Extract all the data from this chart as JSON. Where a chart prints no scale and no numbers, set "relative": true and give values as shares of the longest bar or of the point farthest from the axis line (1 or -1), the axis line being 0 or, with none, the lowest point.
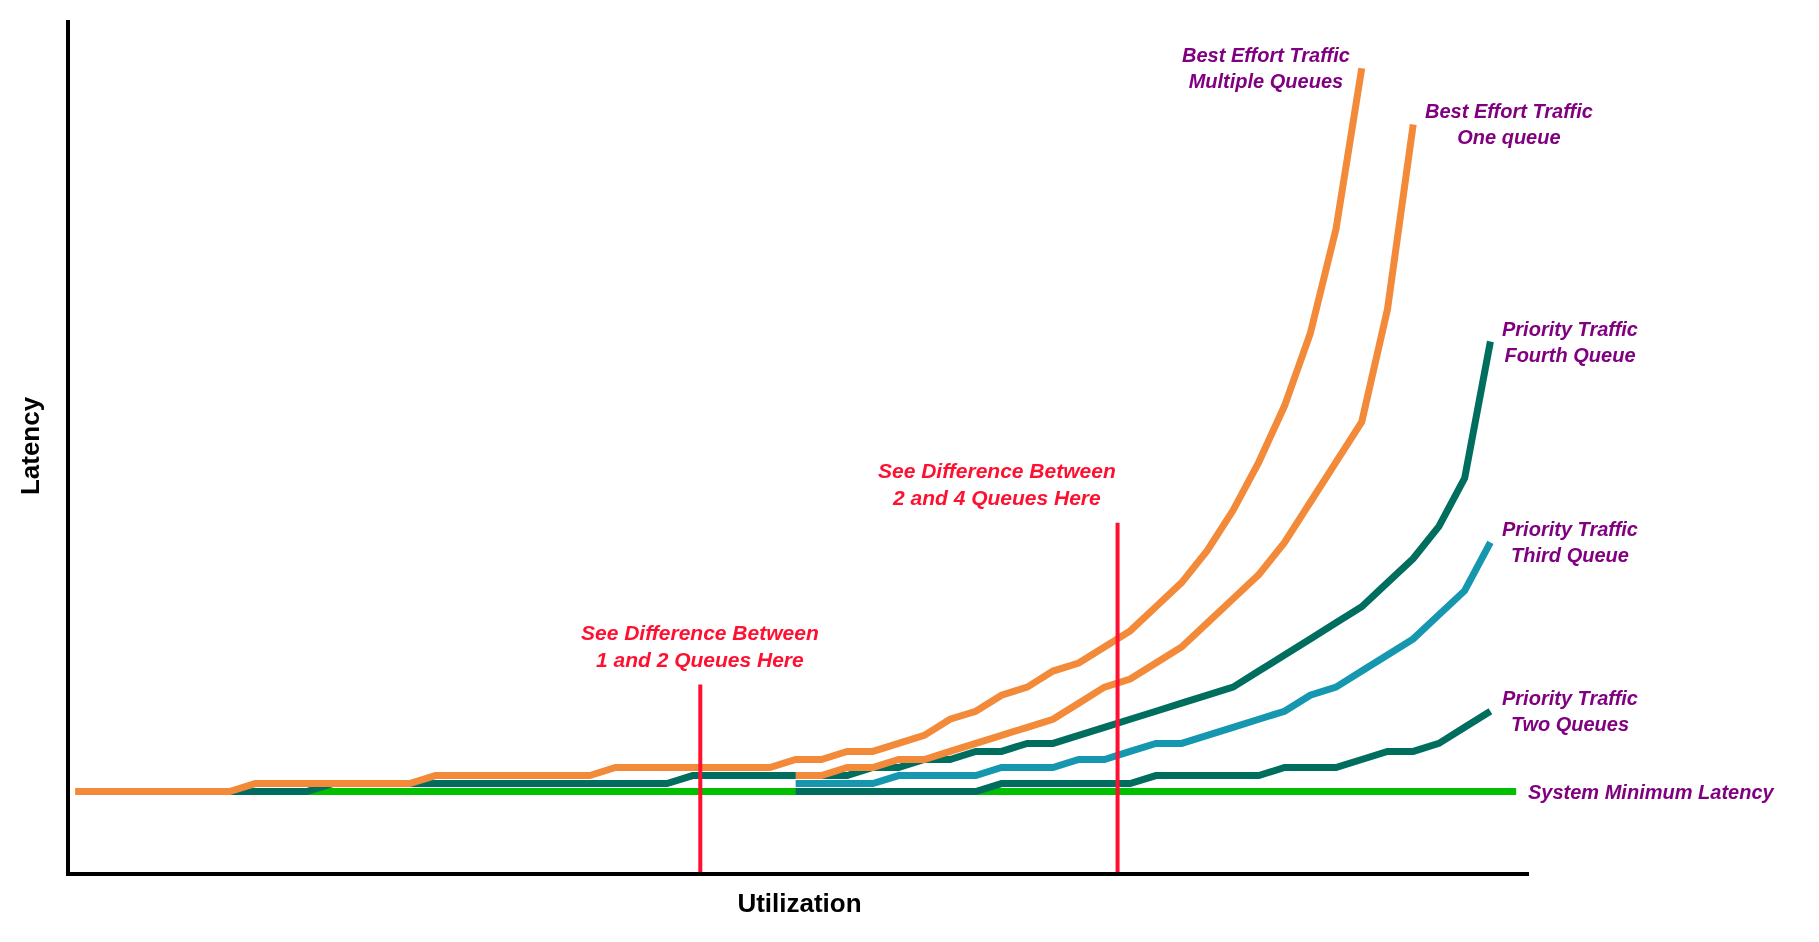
{
  "chart_data": {
    "type": "line",
    "relative": true,
    "xlabel": "Utilization",
    "ylabel": "Latency",
    "legend": false,
    "marker": "none",
    "line_style": "solid",
    "categories": [
      null,
      null,
      null,
      null,
      null,
      null,
      null,
      null,
      null,
      null,
      null,
      null,
      null,
      null,
      null,
      null,
      null,
      null,
      null,
      null,
      null,
      null,
      null,
      null,
      null,
      null,
      null,
      null,
      null,
      null,
      null,
      null,
      null,
      null,
      null,
      null,
      null,
      null,
      null,
      null,
      null,
      null,
      null,
      null,
      null,
      null,
      null,
      null,
      null,
      null,
      null,
      null,
      null,
      null,
      null,
      null,
      null
    ],
    "series": [
      {
        "name": "System Minimum Latency",
        "color": "#00c000",
        "values": [
          null,
          null,
          null,
          null,
          null,
          null,
          null,
          0.1,
          0.1,
          0.1,
          0.1,
          0.1,
          0.1,
          0.1,
          0.1,
          0.1,
          0.1,
          0.1,
          0.1,
          0.1,
          0.1,
          0.1,
          0.1,
          0.1,
          0.1,
          0.1,
          0.1,
          0.1,
          0.1,
          0.1,
          0.1,
          0.1,
          0.1,
          0.1,
          0.1,
          0.1,
          0.1,
          0.1,
          0.1,
          0.1,
          0.1,
          0.1,
          0.1,
          0.1,
          0.1,
          0.1,
          0.1,
          0.1,
          0.1,
          0.1,
          0.1,
          0.1,
          0.1,
          0.1,
          0.1,
          0.1,
          0.1
        ]
      },
      {
        "name": "Priority Traffic\nTwo Queues",
        "color": "#006e5f",
        "values": [
          null,
          null,
          null,
          null,
          null,
          null,
          null,
          null,
          null,
          null,
          null,
          null,
          null,
          null,
          null,
          null,
          null,
          null,
          null,
          null,
          null,
          null,
          null,
          null,
          null,
          null,
          null,
          null,
          0.1,
          0.1,
          0.1,
          0.1,
          0.1,
          0.1,
          0.1,
          0.1,
          0.11,
          0.11,
          0.11,
          0.11,
          0.11,
          0.11,
          0.12,
          0.12,
          0.12,
          0.12,
          0.12,
          0.13,
          0.13,
          0.13,
          0.14,
          0.15,
          0.15,
          0.16,
          0.18,
          0.2,
          null
        ]
      },
      {
        "name": "Priority Traffic\nThird Queue",
        "color": "#1597b0",
        "values": [
          null,
          null,
          null,
          null,
          null,
          null,
          null,
          null,
          null,
          null,
          null,
          null,
          null,
          null,
          null,
          null,
          null,
          null,
          null,
          null,
          null,
          null,
          null,
          null,
          null,
          null,
          null,
          null,
          0.11,
          0.11,
          0.11,
          0.11,
          0.12,
          0.12,
          0.12,
          0.12,
          0.13,
          0.13,
          0.13,
          0.14,
          0.14,
          0.15,
          0.16,
          0.16,
          0.17,
          0.18,
          0.19,
          0.2,
          0.22,
          0.23,
          0.25,
          0.27,
          0.29,
          0.32,
          0.35,
          0.41,
          null
        ]
      },
      {
        "name": "Priority Traffic\nFourth Queue",
        "color": "#006e5f",
        "values": [
          null,
          null,
          null,
          null,
          null,
          null,
          0.1,
          0.1,
          0.1,
          0.1,
          0.11,
          0.11,
          0.11,
          0.11,
          0.11,
          0.11,
          0.11,
          0.11,
          0.11,
          0.11,
          0.11,
          0.11,
          0.11,
          0.11,
          0.12,
          0.12,
          0.12,
          0.12,
          0.12,
          0.12,
          0.12,
          0.13,
          0.13,
          0.14,
          0.14,
          0.15,
          0.15,
          0.16,
          0.16,
          0.17,
          0.18,
          0.19,
          0.2,
          0.21,
          0.22,
          0.23,
          0.25,
          0.27,
          0.29,
          0.31,
          0.33,
          0.36,
          0.39,
          0.43,
          0.49,
          0.66,
          null
        ]
      },
      {
        "name": "Best Effort Traffic\nOne queue",
        "color": "#f28a3a",
        "values": [
          null,
          null,
          null,
          null,
          null,
          null,
          null,
          null,
          null,
          null,
          null,
          null,
          null,
          null,
          null,
          null,
          null,
          null,
          null,
          null,
          null,
          null,
          null,
          null,
          null,
          null,
          null,
          null,
          0.12,
          0.12,
          0.13,
          0.13,
          0.14,
          0.14,
          0.15,
          0.16,
          0.17,
          0.18,
          0.19,
          0.21,
          0.23,
          0.24,
          0.26,
          0.28,
          0.31,
          0.34,
          0.37,
          0.41,
          0.46,
          0.51,
          0.56,
          0.7,
          0.93,
          null,
          null,
          null,
          null
        ]
      },
      {
        "name": "Best Effort Traffic\nMultiple Queues",
        "color": "#f28a3a",
        "values": [
          0.1,
          0.1,
          0.1,
          0.1,
          0.1,
          0.1,
          0.1,
          0.11,
          0.11,
          0.11,
          0.11,
          0.11,
          0.11,
          0.11,
          0.12,
          0.12,
          0.12,
          0.12,
          0.12,
          0.12,
          0.12,
          0.13,
          0.13,
          0.13,
          0.13,
          0.13,
          0.13,
          0.13,
          0.14,
          0.14,
          0.15,
          0.15,
          0.16,
          0.17,
          0.19,
          0.2,
          0.22,
          0.23,
          0.25,
          0.26,
          0.28,
          0.3,
          0.33,
          0.36,
          0.4,
          0.45,
          0.51,
          0.58,
          0.67,
          0.8,
          1.0,
          null,
          null,
          null,
          null,
          null,
          null
        ]
      }
    ],
    "annotations": [
      "See Difference Between\n1 and 2 Queues Here",
      "See Difference Between\n2 and 4 Queues Here"
    ]
  }
}
